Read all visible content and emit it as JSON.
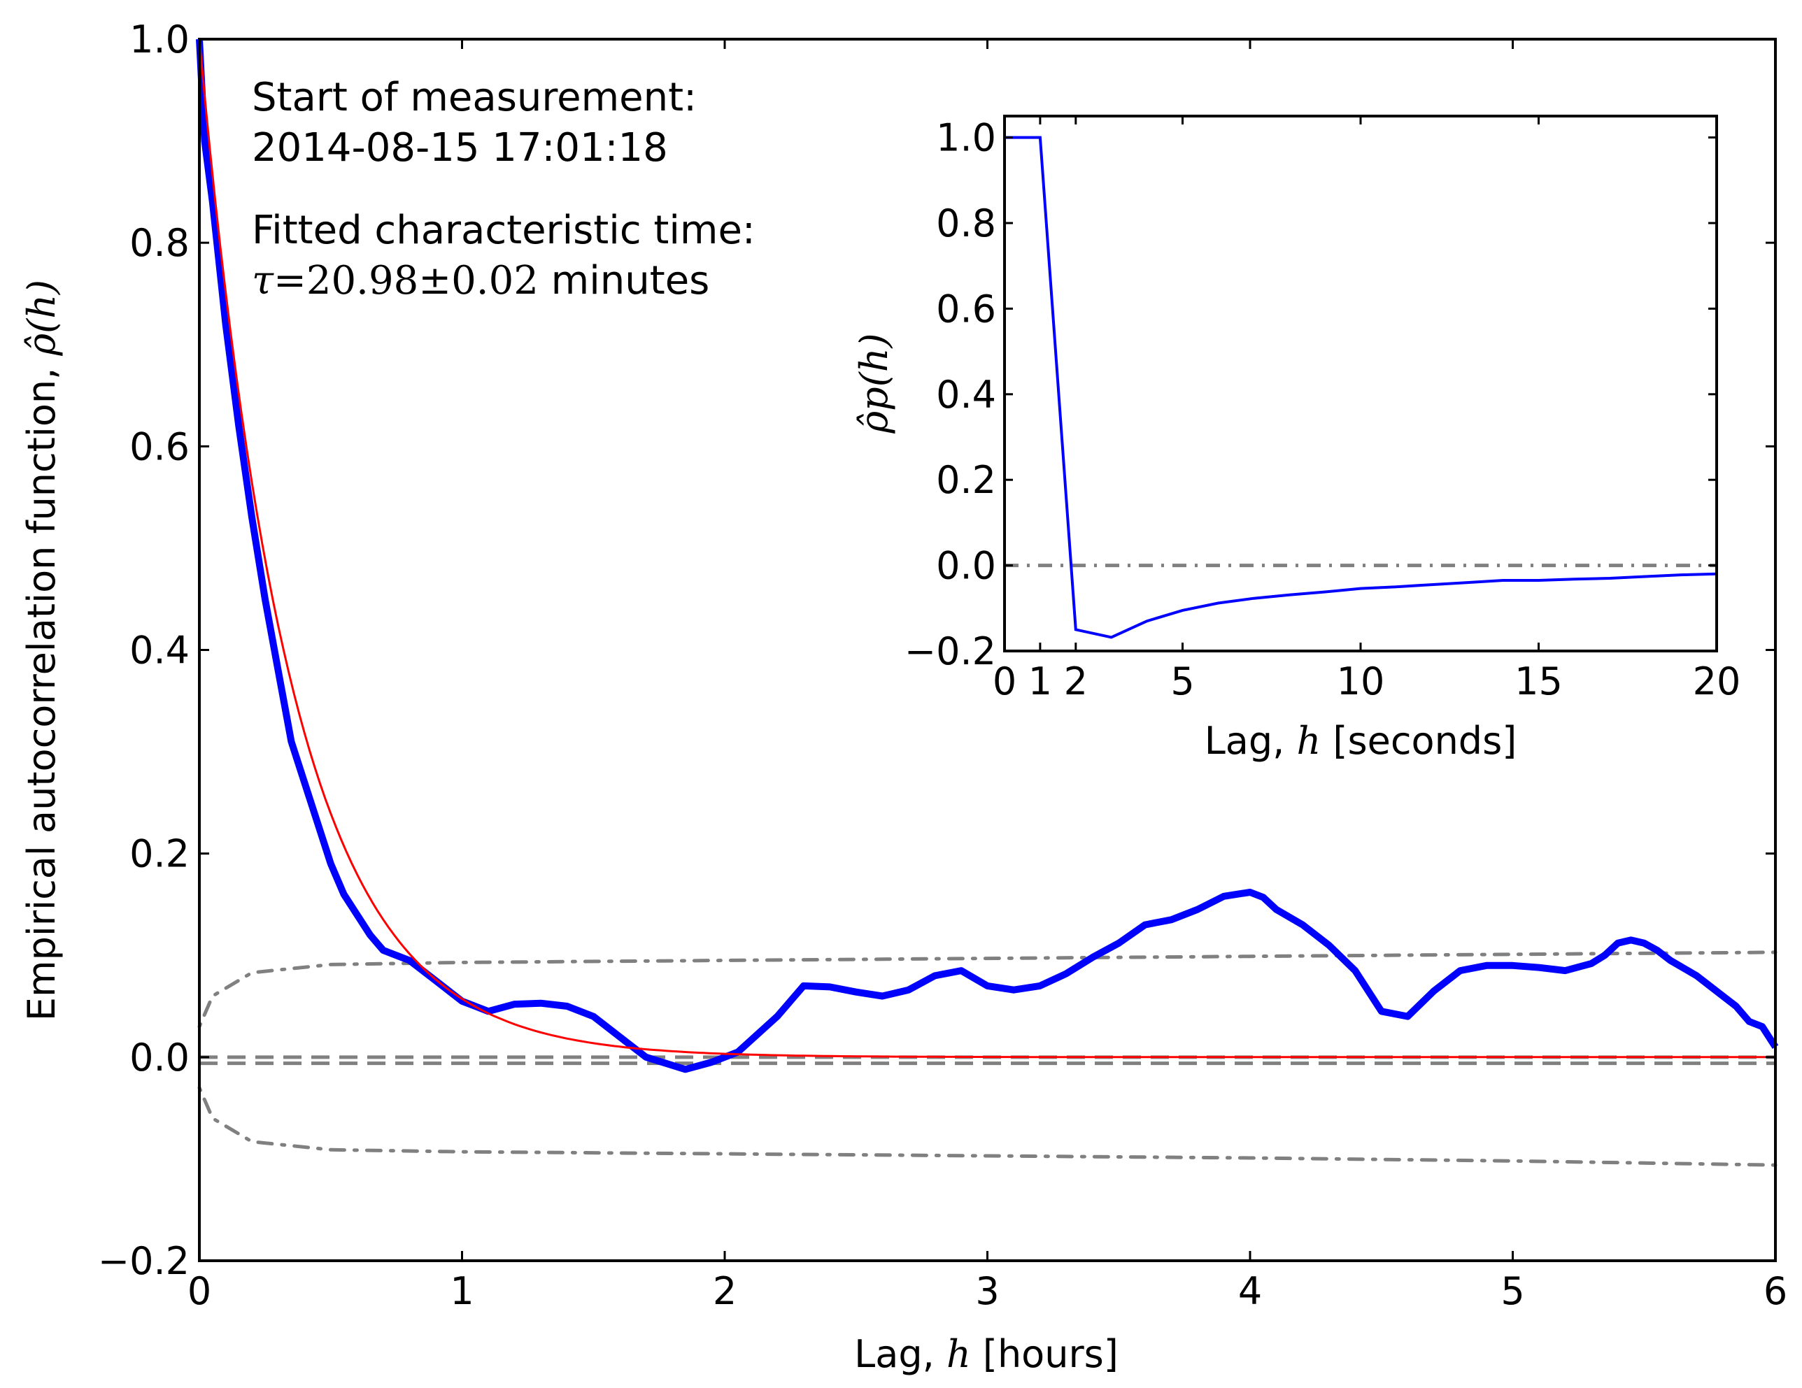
{
  "chart_data": [
    {
      "id": "main",
      "type": "line",
      "xlabel_prefix": "Lag, ",
      "xlabel_var": "h",
      "xlabel_suffix": " [hours]",
      "ylabel_prefix": "Empirical autocorrelation function, ",
      "ylabel_var": "ρ̂(h)",
      "xlim": [
        0,
        6
      ],
      "ylim": [
        -0.2,
        1.0
      ],
      "xticks": [
        "0",
        "1",
        "2",
        "3",
        "4",
        "5",
        "6"
      ],
      "yticks": [
        "−0.2",
        "0.0",
        "0.2",
        "0.4",
        "0.6",
        "0.8",
        "1.0"
      ],
      "grid": false,
      "annotations": {
        "start_label": "Start of measurement:",
        "start_value": "2014-08-15 17:01:18",
        "fit_label": "Fitted characteristic time:",
        "tau_symbol": "τ",
        "tau_value": "=20.98±0.02",
        "tau_unit": " minutes"
      },
      "series": [
        {
          "name": "empirical ACF",
          "color": "#0000ff",
          "x": [
            0,
            0.02,
            0.05,
            0.1,
            0.15,
            0.2,
            0.25,
            0.3,
            0.35,
            0.4,
            0.45,
            0.5,
            0.55,
            0.6,
            0.65,
            0.7,
            0.75,
            0.8,
            0.9,
            1.0,
            1.05,
            1.1,
            1.2,
            1.3,
            1.4,
            1.5,
            1.6,
            1.7,
            1.8,
            1.85,
            1.95,
            2.05,
            2.2,
            2.3,
            2.4,
            2.5,
            2.6,
            2.7,
            2.8,
            2.9,
            3.0,
            3.1,
            3.2,
            3.3,
            3.4,
            3.5,
            3.6,
            3.7,
            3.8,
            3.9,
            4.0,
            4.05,
            4.1,
            4.2,
            4.3,
            4.4,
            4.5,
            4.6,
            4.7,
            4.8,
            4.9,
            5.0,
            5.1,
            5.2,
            5.3,
            5.35,
            5.4,
            5.45,
            5.5,
            5.55,
            5.6,
            5.7,
            5.8,
            5.85,
            5.9,
            5.95,
            6.0
          ],
          "y": [
            1.0,
            0.9,
            0.84,
            0.72,
            0.62,
            0.53,
            0.45,
            0.38,
            0.31,
            0.27,
            0.23,
            0.19,
            0.16,
            0.14,
            0.12,
            0.105,
            0.1,
            0.095,
            0.075,
            0.055,
            0.05,
            0.045,
            0.052,
            0.053,
            0.05,
            0.04,
            0.02,
            0.0,
            -0.008,
            -0.012,
            -0.005,
            0.005,
            0.04,
            0.07,
            0.069,
            0.064,
            0.06,
            0.066,
            0.08,
            0.085,
            0.07,
            0.066,
            0.07,
            0.082,
            0.098,
            0.112,
            0.13,
            0.135,
            0.145,
            0.158,
            0.162,
            0.157,
            0.145,
            0.13,
            0.11,
            0.085,
            0.045,
            0.04,
            0.065,
            0.085,
            0.09,
            0.09,
            0.088,
            0.085,
            0.092,
            0.1,
            0.112,
            0.115,
            0.112,
            0.105,
            0.095,
            0.08,
            0.06,
            0.05,
            0.035,
            0.03,
            0.01
          ]
        },
        {
          "name": "exponential fit",
          "color": "#ff0000",
          "tau_hours": 0.3497
        }
      ],
      "reference_lines": {
        "color": "#808080",
        "zero_dashed": [
          0.0,
          -0.006
        ],
        "confidence_band_upper": {
          "x": [
            0,
            0.05,
            0.2,
            0.5,
            1.0,
            2.0,
            3.0,
            4.0,
            5.0,
            6.0
          ],
          "y": [
            0.03,
            0.06,
            0.083,
            0.091,
            0.093,
            0.095,
            0.097,
            0.099,
            0.101,
            0.103
          ]
        },
        "confidence_band_lower": {
          "x": [
            0,
            0.05,
            0.2,
            0.5,
            1.0,
            2.0,
            3.0,
            4.0,
            5.0,
            6.0
          ],
          "y": [
            -0.03,
            -0.06,
            -0.083,
            -0.091,
            -0.093,
            -0.095,
            -0.097,
            -0.099,
            -0.102,
            -0.106
          ]
        }
      }
    },
    {
      "id": "inset",
      "type": "line",
      "xlabel_prefix": "Lag, ",
      "xlabel_var": "h",
      "xlabel_suffix": " [seconds]",
      "ylabel_var": "ρ̂p(h)",
      "xlim": [
        0,
        20
      ],
      "ylim": [
        -0.2,
        1.05
      ],
      "xticks": [
        "0",
        "1",
        "2",
        "5",
        "10",
        "15",
        "20"
      ],
      "xtick_values": [
        0,
        1,
        2,
        5,
        10,
        15,
        20
      ],
      "yticks": [
        "−0.2",
        "0.0",
        "0.2",
        "0.4",
        "0.6",
        "0.8",
        "1.0"
      ],
      "series": [
        {
          "name": "partial ACF",
          "color": "#0000ff",
          "x": [
            0,
            1,
            2,
            3,
            4,
            5,
            6,
            7,
            8,
            9,
            10,
            11,
            12,
            13,
            14,
            15,
            16,
            17,
            18,
            19,
            20
          ],
          "y": [
            1.0,
            1.0,
            -0.15,
            -0.168,
            -0.13,
            -0.105,
            -0.088,
            -0.077,
            -0.069,
            -0.062,
            -0.054,
            -0.05,
            -0.045,
            -0.04,
            -0.035,
            -0.035,
            -0.032,
            -0.03,
            -0.026,
            -0.022,
            -0.02
          ]
        }
      ],
      "zero_line_color": "#808080"
    }
  ]
}
